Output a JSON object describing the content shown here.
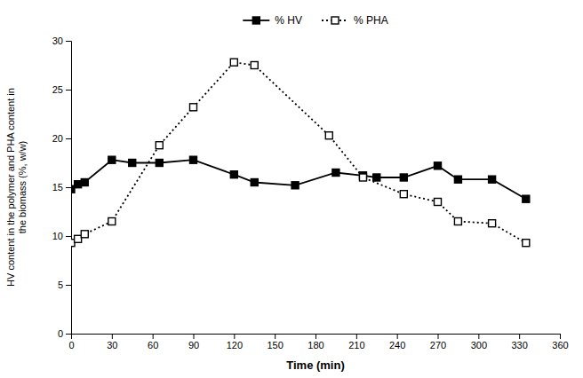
{
  "chart_data": {
    "type": "line",
    "xlabel": "Time (min)",
    "ylabel": "HV content in the polymer and PHA content in\nthe biomass (%, w/w)",
    "xlim": [
      0,
      360
    ],
    "ylim": [
      0,
      30
    ],
    "xticks": [
      0,
      30,
      60,
      90,
      120,
      150,
      180,
      210,
      240,
      270,
      300,
      330,
      360
    ],
    "yticks": [
      0,
      5,
      10,
      15,
      20,
      25,
      30
    ],
    "grid": false,
    "legend": "top",
    "series": [
      {
        "name": "% HV",
        "color": "#000000",
        "marker": "square",
        "line_style": "solid",
        "x": [
          0,
          5,
          10,
          30,
          45,
          65,
          90,
          120,
          135,
          165,
          195,
          215,
          225,
          245,
          270,
          285,
          310,
          335
        ],
        "values": [
          14.8,
          15.3,
          15.5,
          17.8,
          17.5,
          17.5,
          17.8,
          16.3,
          15.5,
          15.2,
          16.5,
          16.2,
          16.0,
          16.0,
          17.2,
          15.8,
          15.8,
          13.8
        ]
      },
      {
        "name": "% PHA",
        "color": "#000000",
        "marker": "square-open",
        "line_style": "dotted",
        "x": [
          0,
          5,
          10,
          30,
          65,
          90,
          120,
          135,
          190,
          215,
          245,
          270,
          285,
          310,
          335
        ],
        "values": [
          9.3,
          9.7,
          10.2,
          11.5,
          19.3,
          23.2,
          27.8,
          27.5,
          20.3,
          16.0,
          14.3,
          13.5,
          11.5,
          11.3,
          9.3
        ]
      }
    ]
  }
}
